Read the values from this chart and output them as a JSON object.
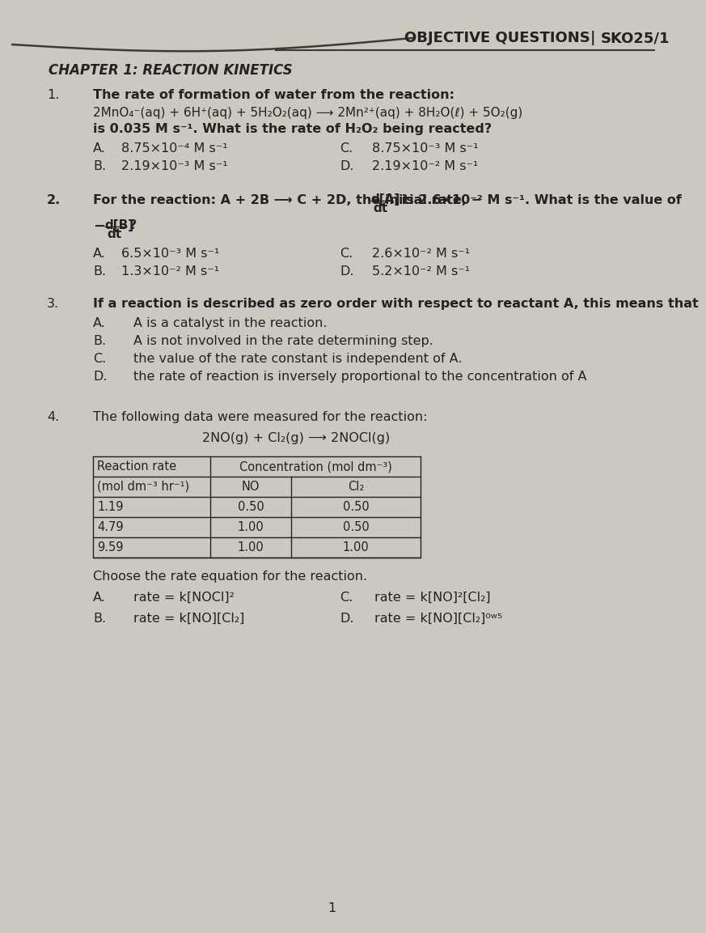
{
  "bg_color": "#ccc8c0",
  "text_color": "#222222",
  "header_text": "OBJECTIVE QUESTIONS",
  "header_code": "SKO25/1",
  "chapter": "CHAPTER 1: REACTION KINETICS",
  "q1_A": "8.75×10⁻⁴ M s⁻¹",
  "q1_B": "2.19×10⁻³ M s⁻¹",
  "q1_C": "8.75×10⁻³ M s⁻¹",
  "q1_D": "2.19×10⁻² M s⁻¹",
  "q2_A": "6.5×10⁻³ M s⁻¹",
  "q2_B": "1.3×10⁻² M s⁻¹",
  "q2_C": "2.6×10⁻² M s⁻¹",
  "q2_D": "5.2×10⁻² M s⁻¹",
  "q3_A": "A is a catalyst in the reaction.",
  "q3_B": "A is not involved in the rate determining step.",
  "q3_C": "the value of the rate constant is independent of A.",
  "q3_D": "the rate of reaction is inversely proportional to the concentration of A",
  "q4_table_rows": [
    [
      "1.19",
      "0.50",
      "0.50"
    ],
    [
      "4.79",
      "1.00",
      "0.50"
    ],
    [
      "9.59",
      "1.00",
      "1.00"
    ]
  ],
  "q4_A": "rate = k[NOCl]²",
  "q4_B": "rate = k[NO][Cl₂]",
  "q4_C": "rate = k[NO]²[Cl₂]",
  "q4_D": "rate = k[NO][Cl₂]⁰ʷ⁵",
  "curve_color": "#3a3a3a",
  "line_color": "#3a3a3a"
}
